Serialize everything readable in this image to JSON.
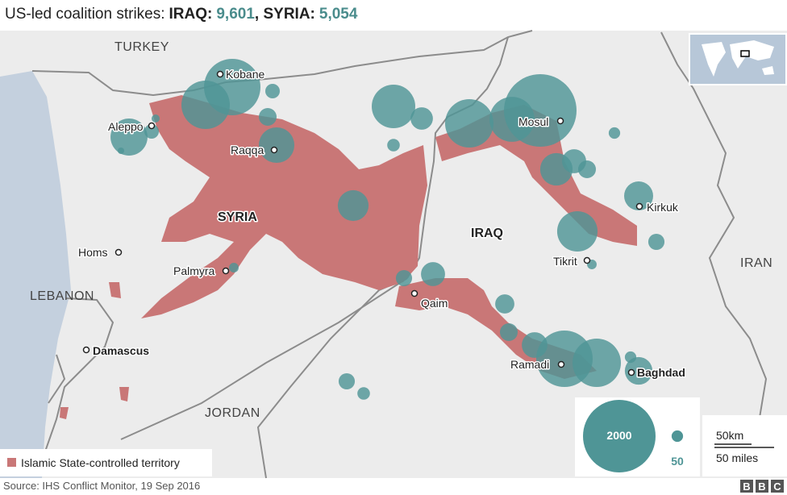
{
  "header": {
    "title": "US-led coalition strikes:",
    "iraq_label": "IRAQ:",
    "iraq_strikes": "9,601",
    "syria_label": "SYRIA:",
    "syria_strikes": "5,054"
  },
  "countries": [
    "TURKEY",
    "SYRIA",
    "IRAQ",
    "IRAN",
    "LEBANON",
    "JORDAN"
  ],
  "cities": [
    "Kobane",
    "Aleppo",
    "Raqqa",
    "Homs",
    "Palmyra",
    "Damascus",
    "Qaim",
    "Mosul",
    "Kirkuk",
    "Tikrit",
    "Ramadi",
    "Baghdad"
  ],
  "strikes": [
    1210,
    890,
    520,
    80,
    25,
    120,
    80,
    480,
    360,
    720,
    190,
    60,
    890,
    770,
    2000,
    400,
    220,
    120,
    50,
    320,
    100,
    620,
    35,
    220,
    100,
    35,
    140,
    120,
    250,
    1210,
    890,
    50,
    290,
    100,
    60,
    16
  ],
  "legend": {
    "territory": "Islamic State-controlled territory",
    "large": 2000,
    "small": 50,
    "scale_km": "50km",
    "scale_miles": "50 miles"
  },
  "footer": {
    "source": "Source: IHS Conflict Monitor, 19 Sep 2016",
    "logo": [
      "B",
      "B",
      "C"
    ]
  }
}
